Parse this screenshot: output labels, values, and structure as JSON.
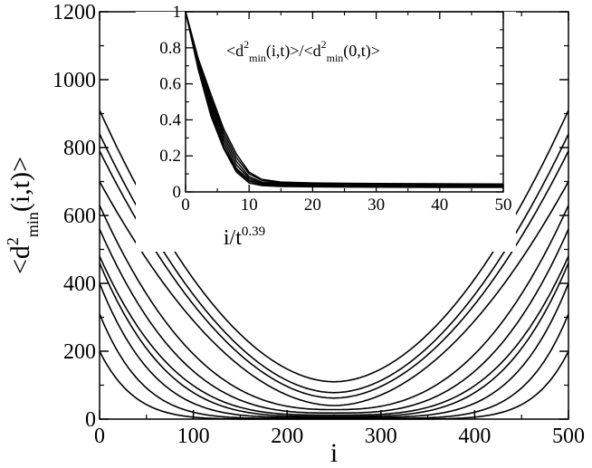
{
  "chart_data": [
    {
      "type": "line",
      "xlabel": "i",
      "ylabel": {
        "lead": "<d",
        "sup": "2",
        "sub": "min",
        "tail": "(i,t)>"
      },
      "xlim": [
        0,
        500
      ],
      "ylim": [
        0,
        1200
      ],
      "xticks": [
        0,
        100,
        200,
        300,
        400,
        500
      ],
      "yticks": [
        0,
        200,
        400,
        600,
        800,
        1000,
        1200
      ],
      "xtick_labels": [
        "0",
        "100",
        "200",
        "300",
        "400",
        "500"
      ],
      "ytick_labels": [
        "0",
        "200",
        "400",
        "600",
        "800",
        "1000",
        "1200"
      ],
      "grid": false,
      "line_color": "#000000",
      "curve_shape": "symmetric about i = 250; each curve falls from its edge value at i = 0 and i = 500 to a minimum near the centre",
      "series": [
        {
          "edge": 910,
          "center": 110
        },
        {
          "edge": 840,
          "center": 78
        },
        {
          "edge": 790,
          "center": 62
        },
        {
          "edge": 700,
          "center": 40
        },
        {
          "edge": 630,
          "center": 28
        },
        {
          "edge": 560,
          "center": 18
        },
        {
          "edge": 480,
          "center": 12
        },
        {
          "edge": 460,
          "center": 8
        },
        {
          "edge": 400,
          "center": 5
        },
        {
          "edge": 310,
          "center": 2
        },
        {
          "edge": 200,
          "center": 0
        }
      ]
    },
    {
      "type": "line",
      "inset": true,
      "xlabel": {
        "base": "i/t",
        "sup": "0.39"
      },
      "annotation": {
        "p1": "<d",
        "s1": "2",
        "b1": "min",
        "p2": "(i,t)>/<d",
        "s2": "2",
        "b2": "min",
        "p3": "(0,t)>"
      },
      "xlim": [
        0,
        50
      ],
      "ylim": [
        0,
        1
      ],
      "xticks": [
        0,
        10,
        20,
        30,
        40,
        50
      ],
      "yticks": [
        0,
        0.2,
        0.4,
        0.6,
        0.8,
        1
      ],
      "xtick_labels": [
        "0",
        "10",
        "20",
        "30",
        "40",
        "50"
      ],
      "ytick_labels": [
        "0",
        "0.2",
        "0.4",
        "0.6",
        "0.8",
        "1"
      ],
      "grid": false,
      "line_color": "#000000",
      "series": [
        {
          "x": [
            0,
            2,
            4,
            6,
            8,
            10,
            12,
            15,
            20,
            30,
            40,
            50
          ],
          "y": [
            1.0,
            0.68,
            0.42,
            0.24,
            0.11,
            0.05,
            0.035,
            0.03,
            0.028,
            0.026,
            0.025,
            0.025
          ]
        },
        {
          "x": [
            0,
            2,
            4,
            6,
            8,
            10,
            12,
            15,
            20,
            30,
            40,
            50
          ],
          "y": [
            1.0,
            0.69,
            0.44,
            0.25,
            0.12,
            0.06,
            0.04,
            0.033,
            0.03,
            0.028,
            0.027,
            0.026
          ]
        },
        {
          "x": [
            0,
            2,
            4,
            6,
            8,
            10,
            12,
            15,
            20,
            30,
            40,
            50
          ],
          "y": [
            1.0,
            0.7,
            0.46,
            0.27,
            0.13,
            0.065,
            0.045,
            0.037,
            0.033,
            0.031,
            0.03,
            0.03
          ]
        },
        {
          "x": [
            0,
            2,
            4,
            6,
            8,
            10,
            12,
            15,
            20,
            30,
            40,
            50
          ],
          "y": [
            1.0,
            0.71,
            0.48,
            0.29,
            0.15,
            0.075,
            0.05,
            0.04,
            0.036,
            0.033,
            0.032,
            0.032
          ]
        },
        {
          "x": [
            0,
            2,
            4,
            6,
            8,
            10,
            12,
            15,
            20,
            30,
            40,
            50
          ],
          "y": [
            1.0,
            0.72,
            0.5,
            0.31,
            0.17,
            0.085,
            0.055,
            0.045,
            0.04,
            0.037,
            0.036,
            0.035
          ]
        },
        {
          "x": [
            0,
            2,
            4,
            6,
            8,
            10,
            12,
            15,
            20,
            30,
            40,
            50
          ],
          "y": [
            1.0,
            0.73,
            0.52,
            0.33,
            0.19,
            0.1,
            0.065,
            0.05,
            0.045,
            0.042,
            0.04,
            0.04
          ]
        },
        {
          "x": [
            0,
            2,
            4,
            6,
            8,
            10,
            12,
            15,
            20,
            30,
            40,
            50
          ],
          "y": [
            1.0,
            0.74,
            0.54,
            0.35,
            0.21,
            0.11,
            0.07,
            0.055,
            0.05,
            0.046,
            0.045,
            0.044
          ]
        }
      ]
    }
  ]
}
